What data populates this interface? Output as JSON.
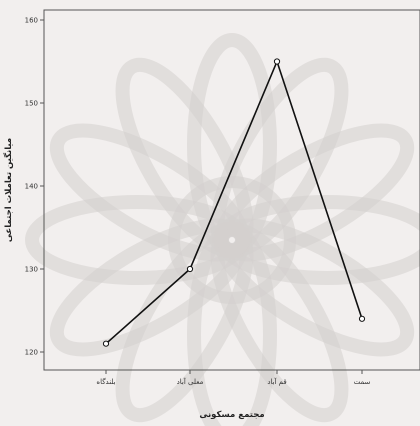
{
  "colors": {
    "background": "#f2efee",
    "plot_background": "#ffffff",
    "line": "#111111",
    "watermark": "#d4d0cd"
  },
  "chart_data": {
    "type": "line",
    "categories": [
      "بلندگاه",
      "معلی آباد",
      "قم آباد",
      "سمت"
    ],
    "values": [
      121,
      130,
      155,
      124
    ],
    "xlabel": "مجتمع مسکونی",
    "ylabel": "میانگین تعاملات اجتماعی",
    "ylim": [
      119,
      162
    ],
    "yticks": [
      120,
      130,
      140,
      150,
      160
    ],
    "grid": false,
    "marker": "open-circle"
  }
}
